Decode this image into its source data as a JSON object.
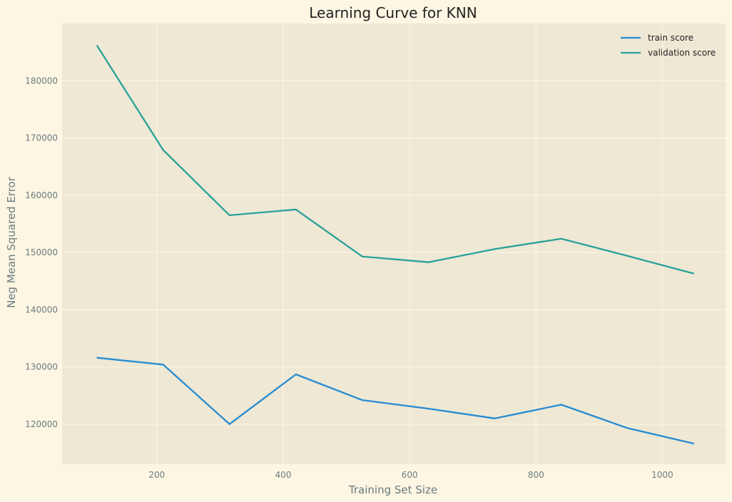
{
  "chart_data": {
    "type": "line",
    "title": "Learning Curve for KNN",
    "xlabel": "Training Set Size",
    "ylabel": "Neg Mean Squared Error",
    "xlim": [
      50,
      1100
    ],
    "ylim": [
      113000,
      190000
    ],
    "x_ticks": [
      200,
      400,
      600,
      800,
      1000
    ],
    "y_ticks": [
      120000,
      130000,
      140000,
      150000,
      160000,
      170000,
      180000
    ],
    "grid": true,
    "legend_position": "top-right",
    "x": [
      105,
      210,
      315,
      420,
      525,
      630,
      735,
      840,
      945,
      1050
    ],
    "series": [
      {
        "name": "train score",
        "color": "#268bd2",
        "values": [
          131600,
          130400,
          120000,
          128700,
          124200,
          122700,
          121000,
          123400,
          119300,
          116600
        ]
      },
      {
        "name": "validation score",
        "color": "#2aa198",
        "values": [
          186200,
          167900,
          156500,
          157500,
          149300,
          148300,
          150600,
          152400,
          149400,
          146300
        ]
      }
    ],
    "colors": {
      "figure_bg": "#fdf6e3",
      "axes_bg": "#eee8d5",
      "grid": "#fdf6e3",
      "tick_text": "#6b7b80"
    }
  }
}
